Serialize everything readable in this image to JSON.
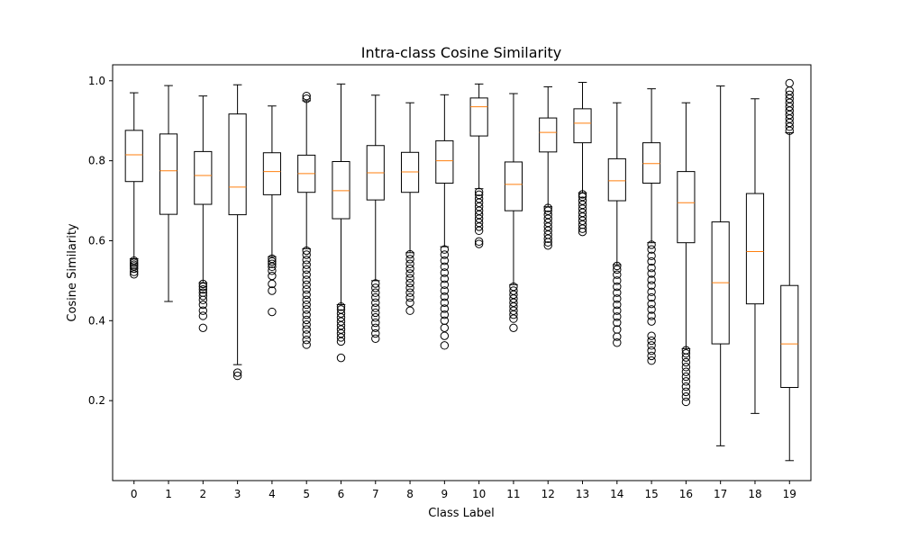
{
  "chart_data": {
    "type": "box",
    "title": "Intra-class Cosine Similarity",
    "xlabel": "Class Label",
    "ylabel": "Cosine Similarity",
    "ylim": [
      0.0,
      1.04
    ],
    "yticks": [
      0.2,
      0.4,
      0.6,
      0.8,
      1.0
    ],
    "ytick_labels": [
      "0.2",
      "0.4",
      "0.6",
      "0.8",
      "1.0"
    ],
    "categories": [
      "0",
      "1",
      "2",
      "3",
      "4",
      "5",
      "6",
      "7",
      "8",
      "9",
      "10",
      "11",
      "12",
      "13",
      "14",
      "15",
      "16",
      "17",
      "18",
      "19"
    ],
    "grid": false,
    "colors": {
      "box": "#000000",
      "median": "#ff7f0e",
      "flier": "#000000",
      "background": "#ffffff"
    },
    "series": [
      {
        "values": [
          {
            "label": "0",
            "whisker_low": 0.555,
            "q1": 0.748,
            "median": 0.815,
            "q3": 0.876,
            "whisker_high": 0.97,
            "fliers": [
              0.516,
              0.522,
              0.53,
              0.536,
              0.54,
              0.545,
              0.55
            ]
          },
          {
            "label": "1",
            "whisker_low": 0.448,
            "q1": 0.666,
            "median": 0.775,
            "q3": 0.867,
            "whisker_high": 0.988,
            "fliers": []
          },
          {
            "label": "2",
            "whisker_low": 0.495,
            "q1": 0.691,
            "median": 0.763,
            "q3": 0.823,
            "whisker_high": 0.962,
            "fliers": [
              0.382,
              0.412,
              0.425,
              0.44,
              0.452,
              0.462,
              0.47,
              0.478,
              0.485,
              0.492
            ]
          },
          {
            "label": "3",
            "whisker_low": 0.29,
            "q1": 0.665,
            "median": 0.734,
            "q3": 0.917,
            "whisker_high": 0.99,
            "fliers": [
              0.262,
              0.27
            ]
          },
          {
            "label": "4",
            "whisker_low": 0.56,
            "q1": 0.715,
            "median": 0.773,
            "q3": 0.82,
            "whisker_high": 0.937,
            "fliers": [
              0.422,
              0.475,
              0.492,
              0.512,
              0.525,
              0.535,
              0.542,
              0.548,
              0.555
            ]
          },
          {
            "label": "5",
            "whisker_low": 0.58,
            "q1": 0.721,
            "median": 0.768,
            "q3": 0.814,
            "whisker_high": 0.95,
            "fliers": [
              0.34,
              0.352,
              0.365,
              0.378,
              0.39,
              0.402,
              0.415,
              0.428,
              0.44,
              0.452,
              0.465,
              0.478,
              0.49,
              0.502,
              0.515,
              0.528,
              0.54,
              0.552,
              0.565,
              0.575,
              0.955,
              0.962
            ]
          },
          {
            "label": "6",
            "whisker_low": 0.44,
            "q1": 0.655,
            "median": 0.725,
            "q3": 0.798,
            "whisker_high": 0.992,
            "fliers": [
              0.307,
              0.348,
              0.358,
              0.368,
              0.378,
              0.388,
              0.398,
              0.408,
              0.418,
              0.428,
              0.435
            ]
          },
          {
            "label": "7",
            "whisker_low": 0.5,
            "q1": 0.702,
            "median": 0.77,
            "q3": 0.838,
            "whisker_high": 0.964,
            "fliers": [
              0.355,
              0.368,
              0.382,
              0.395,
              0.408,
              0.42,
              0.432,
              0.445,
              0.458,
              0.47,
              0.482,
              0.493
            ]
          },
          {
            "label": "8",
            "whisker_low": 0.57,
            "q1": 0.721,
            "median": 0.772,
            "q3": 0.821,
            "whisker_high": 0.945,
            "fliers": [
              0.425,
              0.445,
              0.458,
              0.47,
              0.482,
              0.494,
              0.506,
              0.518,
              0.53,
              0.542,
              0.554,
              0.566
            ]
          },
          {
            "label": "9",
            "whisker_low": 0.585,
            "q1": 0.744,
            "median": 0.8,
            "q3": 0.85,
            "whisker_high": 0.965,
            "fliers": [
              0.338,
              0.362,
              0.382,
              0.4,
              0.415,
              0.43,
              0.445,
              0.46,
              0.475,
              0.49,
              0.505,
              0.52,
              0.535,
              0.55,
              0.565,
              0.578
            ]
          },
          {
            "label": "10",
            "whisker_low": 0.73,
            "q1": 0.862,
            "median": 0.935,
            "q3": 0.957,
            "whisker_high": 0.992,
            "fliers": [
              0.592,
              0.598,
              0.625,
              0.635,
              0.645,
              0.655,
              0.665,
              0.675,
              0.685,
              0.695,
              0.705,
              0.715,
              0.722
            ]
          },
          {
            "label": "11",
            "whisker_low": 0.49,
            "q1": 0.675,
            "median": 0.741,
            "q3": 0.797,
            "whisker_high": 0.968,
            "fliers": [
              0.382,
              0.405,
              0.415,
              0.425,
              0.435,
              0.445,
              0.455,
              0.465,
              0.475,
              0.485
            ]
          },
          {
            "label": "12",
            "whisker_low": 0.685,
            "q1": 0.822,
            "median": 0.871,
            "q3": 0.907,
            "whisker_high": 0.985,
            "fliers": [
              0.588,
              0.596,
              0.605,
              0.615,
              0.625,
              0.635,
              0.645,
              0.655,
              0.665,
              0.675,
              0.682
            ]
          },
          {
            "label": "13",
            "whisker_low": 0.72,
            "q1": 0.845,
            "median": 0.894,
            "q3": 0.93,
            "whisker_high": 0.996,
            "fliers": [
              0.622,
              0.63,
              0.64,
              0.65,
              0.66,
              0.67,
              0.68,
              0.69,
              0.7,
              0.71,
              0.716
            ]
          },
          {
            "label": "14",
            "whisker_low": 0.54,
            "q1": 0.7,
            "median": 0.75,
            "q3": 0.805,
            "whisker_high": 0.945,
            "fliers": [
              0.345,
              0.36,
              0.378,
              0.395,
              0.41,
              0.425,
              0.44,
              0.455,
              0.47,
              0.485,
              0.5,
              0.515,
              0.528,
              0.537
            ]
          },
          {
            "label": "15",
            "whisker_low": 0.595,
            "q1": 0.744,
            "median": 0.793,
            "q3": 0.845,
            "whisker_high": 0.98,
            "fliers": [
              0.3,
              0.312,
              0.325,
              0.338,
              0.35,
              0.362,
              0.398,
              0.412,
              0.428,
              0.442,
              0.458,
              0.472,
              0.488,
              0.502,
              0.518,
              0.532,
              0.548,
              0.562,
              0.578,
              0.59
            ]
          },
          {
            "label": "16",
            "whisker_low": 0.33,
            "q1": 0.595,
            "median": 0.695,
            "q3": 0.773,
            "whisker_high": 0.945,
            "fliers": [
              0.197,
              0.21,
              0.222,
              0.235,
              0.248,
              0.26,
              0.272,
              0.284,
              0.296,
              0.308,
              0.318,
              0.326
            ]
          },
          {
            "label": "17",
            "whisker_low": 0.087,
            "q1": 0.342,
            "median": 0.495,
            "q3": 0.647,
            "whisker_high": 0.987,
            "fliers": []
          },
          {
            "label": "18",
            "whisker_low": 0.168,
            "q1": 0.442,
            "median": 0.573,
            "q3": 0.718,
            "whisker_high": 0.955,
            "fliers": []
          },
          {
            "label": "19",
            "whisker_low": 0.05,
            "q1": 0.233,
            "median": 0.342,
            "q3": 0.488,
            "whisker_high": 0.87,
            "fliers": [
              0.875,
              0.885,
              0.895,
              0.905,
              0.915,
              0.925,
              0.935,
              0.945,
              0.955,
              0.965,
              0.975,
              0.994
            ]
          }
        ]
      }
    ]
  }
}
